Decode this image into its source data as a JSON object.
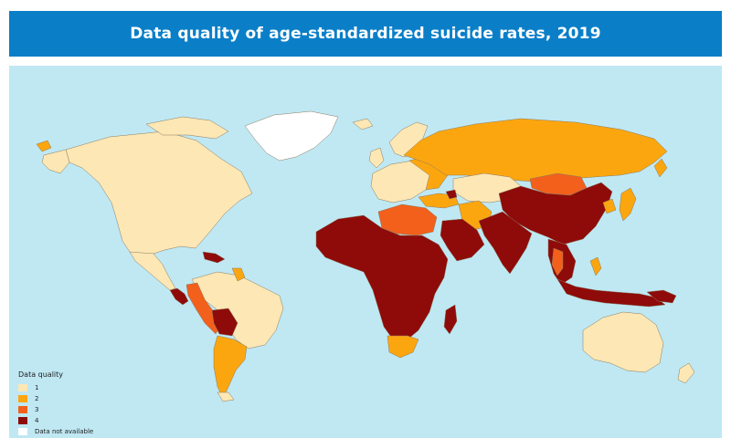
{
  "title": "Data quality of age-standardized suicide rates, 2019",
  "colors": {
    "ocean": "#bfe8f3",
    "title_bg": "#0a7fc8",
    "q1": "#fde7b4",
    "q2": "#fca60f",
    "q3": "#f2601c",
    "q4": "#8e0b09",
    "na": "#ffffff",
    "border": "#8a7b62"
  },
  "legend": {
    "title": "Data quality",
    "items": [
      {
        "label": "1",
        "key": "q1"
      },
      {
        "label": "2",
        "key": "q2"
      },
      {
        "label": "3",
        "key": "q3"
      },
      {
        "label": "4",
        "key": "q4"
      },
      {
        "label": "Data not available",
        "key": "na"
      }
    ]
  }
}
